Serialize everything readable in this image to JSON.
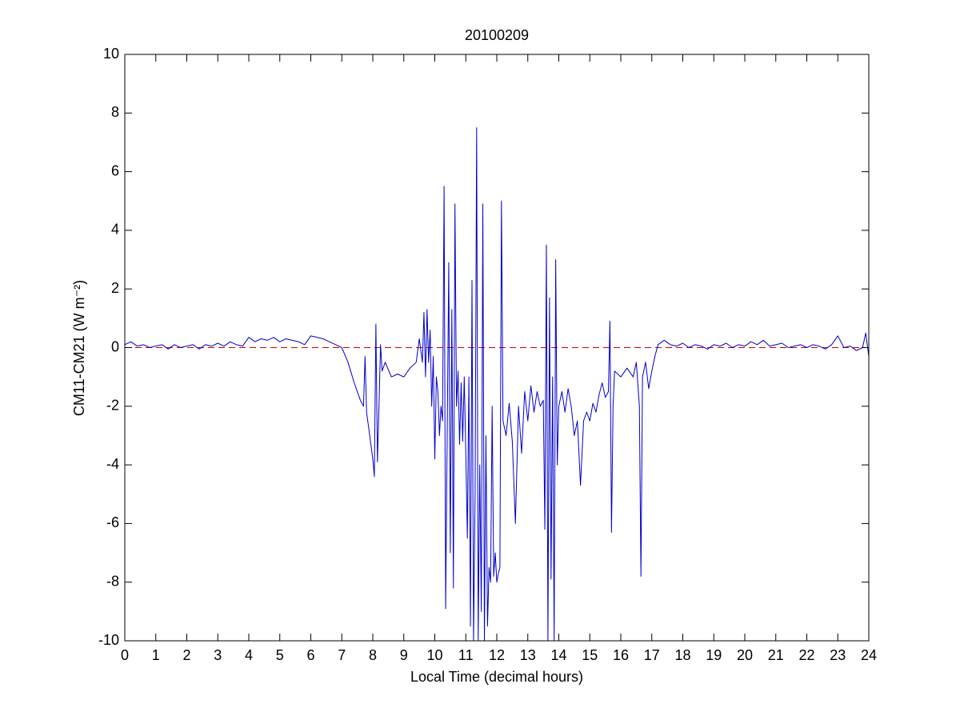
{
  "chart_data": {
    "type": "line",
    "title": "20100209",
    "x_label": "Local Time (decimal hours)",
    "y_label": "CM11-CM21 (W m⁻²)",
    "xlim": [
      0,
      24
    ],
    "xticks": [
      0,
      1,
      2,
      3,
      4,
      5,
      6,
      7,
      8,
      9,
      10,
      11,
      12,
      13,
      14,
      15,
      16,
      17,
      18,
      19,
      20,
      21,
      22,
      23,
      24
    ],
    "ylim": [
      -10,
      10
    ],
    "yticks": [
      -10,
      -8,
      -6,
      -4,
      -2,
      0,
      2,
      4,
      6,
      8,
      10
    ],
    "reference_line": 0,
    "reference_color": "#cc0000",
    "series": [
      {
        "color": "#0000cc",
        "x": [
          0,
          0.2,
          0.4,
          0.6,
          0.8,
          1,
          1.2,
          1.4,
          1.6,
          1.8,
          2,
          2.2,
          2.4,
          2.6,
          2.8,
          3,
          3.2,
          3.4,
          3.6,
          3.8,
          4,
          4.2,
          4.4,
          4.6,
          4.8,
          5,
          5.2,
          5.4,
          5.6,
          5.8,
          6,
          6.2,
          6.4,
          6.6,
          6.8,
          7,
          7.2,
          7.4,
          7.6,
          7.7,
          7.75,
          7.8,
          7.9,
          8,
          8.05,
          8.1,
          8.15,
          8.2,
          8.25,
          8.3,
          8.4,
          8.6,
          8.8,
          9,
          9.2,
          9.4,
          9.5,
          9.6,
          9.65,
          9.7,
          9.75,
          9.8,
          9.85,
          9.9,
          9.95,
          10,
          10.05,
          10.1,
          10.15,
          10.2,
          10.25,
          10.3,
          10.35,
          10.4,
          10.45,
          10.5,
          10.55,
          10.6,
          10.65,
          10.7,
          10.75,
          10.8,
          10.85,
          10.9,
          10.95,
          11,
          11.05,
          11.1,
          11.15,
          11.2,
          11.25,
          11.3,
          11.35,
          11.4,
          11.45,
          11.5,
          11.55,
          11.6,
          11.65,
          11.7,
          11.75,
          11.8,
          11.85,
          11.9,
          11.95,
          12,
          12.05,
          12.1,
          12.15,
          12.2,
          12.3,
          12.4,
          12.5,
          12.6,
          12.7,
          12.8,
          12.9,
          13,
          13.1,
          13.2,
          13.3,
          13.4,
          13.5,
          13.55,
          13.6,
          13.65,
          13.7,
          13.75,
          13.8,
          13.85,
          13.9,
          13.95,
          14,
          14.1,
          14.2,
          14.3,
          14.4,
          14.5,
          14.6,
          14.7,
          14.8,
          14.9,
          15,
          15.1,
          15.2,
          15.3,
          15.4,
          15.5,
          15.6,
          15.65,
          15.7,
          15.75,
          15.8,
          16,
          16.2,
          16.4,
          16.5,
          16.6,
          16.65,
          16.7,
          16.8,
          16.9,
          17,
          17.1,
          17.2,
          17.4,
          17.6,
          17.8,
          18,
          18.2,
          18.4,
          18.6,
          18.8,
          19,
          19.2,
          19.4,
          19.6,
          19.8,
          20,
          20.2,
          20.4,
          20.6,
          20.8,
          21,
          21.2,
          21.4,
          21.6,
          21.8,
          22,
          22.2,
          22.4,
          22.6,
          22.8,
          23,
          23.2,
          23.4,
          23.6,
          23.8,
          23.9,
          24
        ],
        "values": [
          0.1,
          0.2,
          0.05,
          0.1,
          0,
          0.05,
          0.1,
          -0.05,
          0.1,
          0,
          0.05,
          0.1,
          -0.05,
          0.1,
          0.05,
          0.15,
          0.05,
          0.2,
          0.1,
          0.05,
          0.35,
          0.2,
          0.3,
          0.25,
          0.35,
          0.2,
          0.3,
          0.25,
          0.2,
          0.1,
          0.4,
          0.35,
          0.3,
          0.2,
          0.1,
          0,
          -0.5,
          -1.2,
          -1.8,
          -2,
          -0.3,
          -2.2,
          -3,
          -3.8,
          -4.4,
          0.8,
          -3.9,
          -2,
          0.1,
          -0.8,
          -0.5,
          -1,
          -0.9,
          -1,
          -0.7,
          -0.5,
          0.3,
          -0.5,
          1.2,
          -1,
          1.3,
          -0.5,
          0.6,
          -2,
          -0.3,
          -3.8,
          -1,
          -1.5,
          -3,
          -2,
          -2.5,
          5.5,
          -8.9,
          -3,
          2.9,
          -7,
          1.3,
          -8.2,
          4.9,
          -2,
          -0.8,
          -3.3,
          -1.2,
          -3.2,
          -1,
          -3.6,
          -6.5,
          -1,
          -9.5,
          2.3,
          -10,
          -5,
          7.5,
          -10,
          -4,
          -9,
          4.9,
          -10,
          -3,
          -9.5,
          -7.5,
          -8,
          -2,
          -7.8,
          -7,
          -8,
          -7.7,
          -7.5,
          5,
          -2.5,
          -3,
          -1.9,
          -3.2,
          -6,
          -2,
          -3.6,
          -1.5,
          -2.5,
          -1.3,
          -2.2,
          -1.5,
          -2,
          -1.8,
          -6.2,
          3.5,
          -10,
          1.7,
          -7.9,
          -1,
          -10,
          3,
          -4,
          -2,
          -1.5,
          -2.2,
          -1.4,
          -2,
          -3,
          -2.5,
          -4.7,
          -2.5,
          -2.2,
          -2.5,
          -1.9,
          -2.2,
          -1.6,
          -1.2,
          -1.7,
          -1.5,
          0.9,
          -6.3,
          -2,
          -0.8,
          -1,
          -0.7,
          -1,
          -0.5,
          -2,
          -7.8,
          -1,
          -0.5,
          -1.4,
          -0.8,
          -0.3,
          0.1,
          0.25,
          0.1,
          0.05,
          0.15,
          0,
          0.1,
          0.05,
          -0.05,
          0.1,
          0.05,
          0.15,
          0,
          0.1,
          0.05,
          0.2,
          0.1,
          0.25,
          0.05,
          0.1,
          0.15,
          0,
          0.05,
          0.1,
          0,
          0.1,
          0.05,
          -0.05,
          0.1,
          0.4,
          0,
          0.05,
          -0.1,
          0,
          0.5,
          -0.3
        ]
      }
    ]
  }
}
